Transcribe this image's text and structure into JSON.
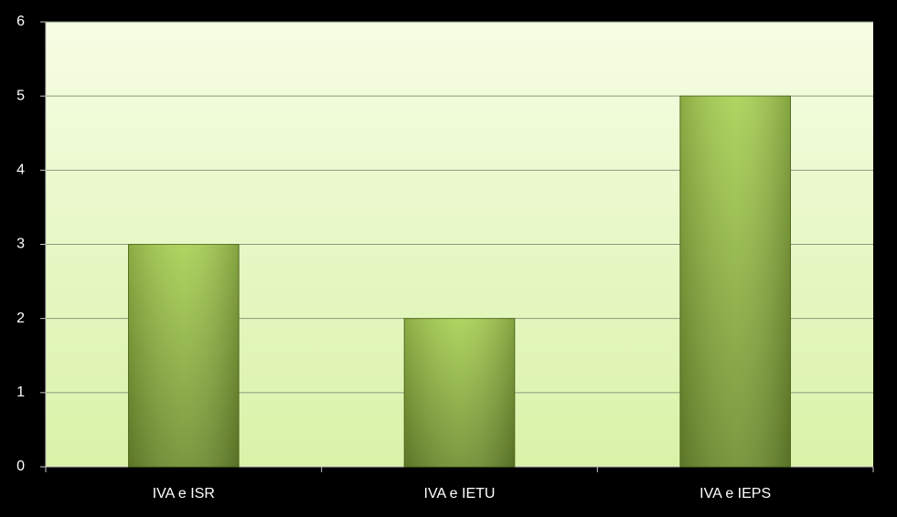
{
  "chart_data": {
    "type": "bar",
    "categories": [
      "IVA e ISR",
      "IVA e IETU",
      "IVA e IEPS"
    ],
    "values": [
      3,
      2,
      5
    ],
    "color": "#9bc44a",
    "ylim": [
      0,
      6
    ],
    "yticks": [
      0,
      1,
      2,
      3,
      4,
      5,
      6
    ],
    "grid": true
  }
}
